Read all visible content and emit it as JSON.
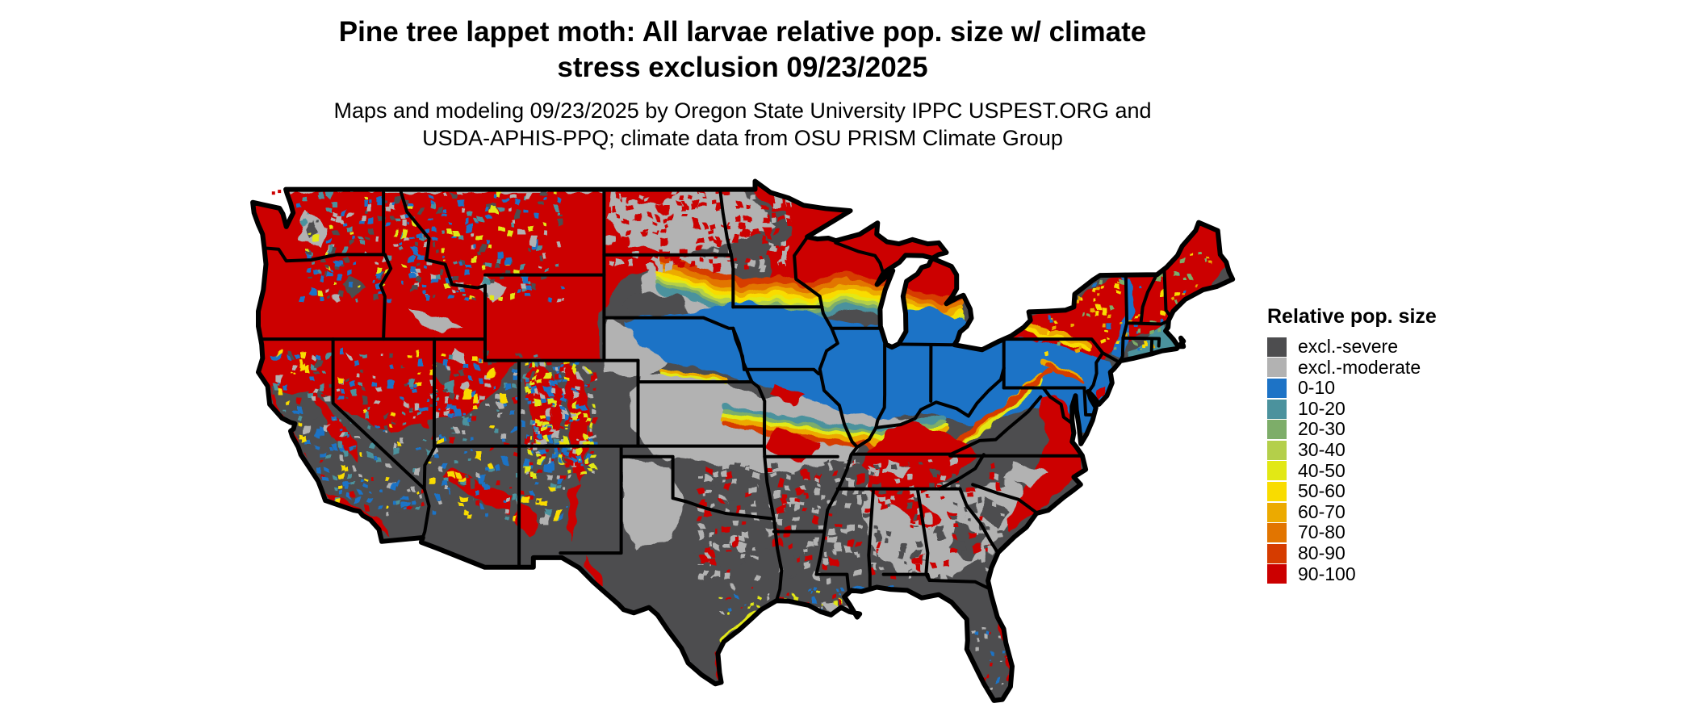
{
  "header": {
    "title_line1": "Pine tree lappet moth: All larvae relative pop. size w/ climate",
    "title_line2": "stress exclusion 09/23/2025",
    "subtitle_line1": "Maps and modeling 09/23/2025 by Oregon State University IPPC USPEST.ORG and",
    "subtitle_line2": "USDA-APHIS-PPQ; climate data from OSU PRISM Climate Group"
  },
  "map": {
    "label": "Contiguous United States relative population size raster map"
  },
  "legend": {
    "title": "Relative pop. size",
    "items": [
      {
        "key": "excl-severe",
        "label": "excl.-severe",
        "color": "#4d4d4f"
      },
      {
        "key": "excl-moderate",
        "label": "excl.-moderate",
        "color": "#b2b2b2"
      },
      {
        "key": "0-10",
        "label": "0-10",
        "color": "#1d73c6"
      },
      {
        "key": "10-20",
        "label": "10-20",
        "color": "#4b929d"
      },
      {
        "key": "20-30",
        "label": "20-30",
        "color": "#7dad69"
      },
      {
        "key": "30-40",
        "label": "30-40",
        "color": "#b4cf4a"
      },
      {
        "key": "40-50",
        "label": "40-50",
        "color": "#e2e815"
      },
      {
        "key": "50-60",
        "label": "50-60",
        "color": "#f9dc00"
      },
      {
        "key": "60-70",
        "label": "60-70",
        "color": "#ecaa00"
      },
      {
        "key": "70-80",
        "label": "70-80",
        "color": "#e27500"
      },
      {
        "key": "80-90",
        "label": "80-90",
        "color": "#d63c00"
      },
      {
        "key": "90-100",
        "label": "90-100",
        "color": "#cc0000"
      }
    ]
  }
}
